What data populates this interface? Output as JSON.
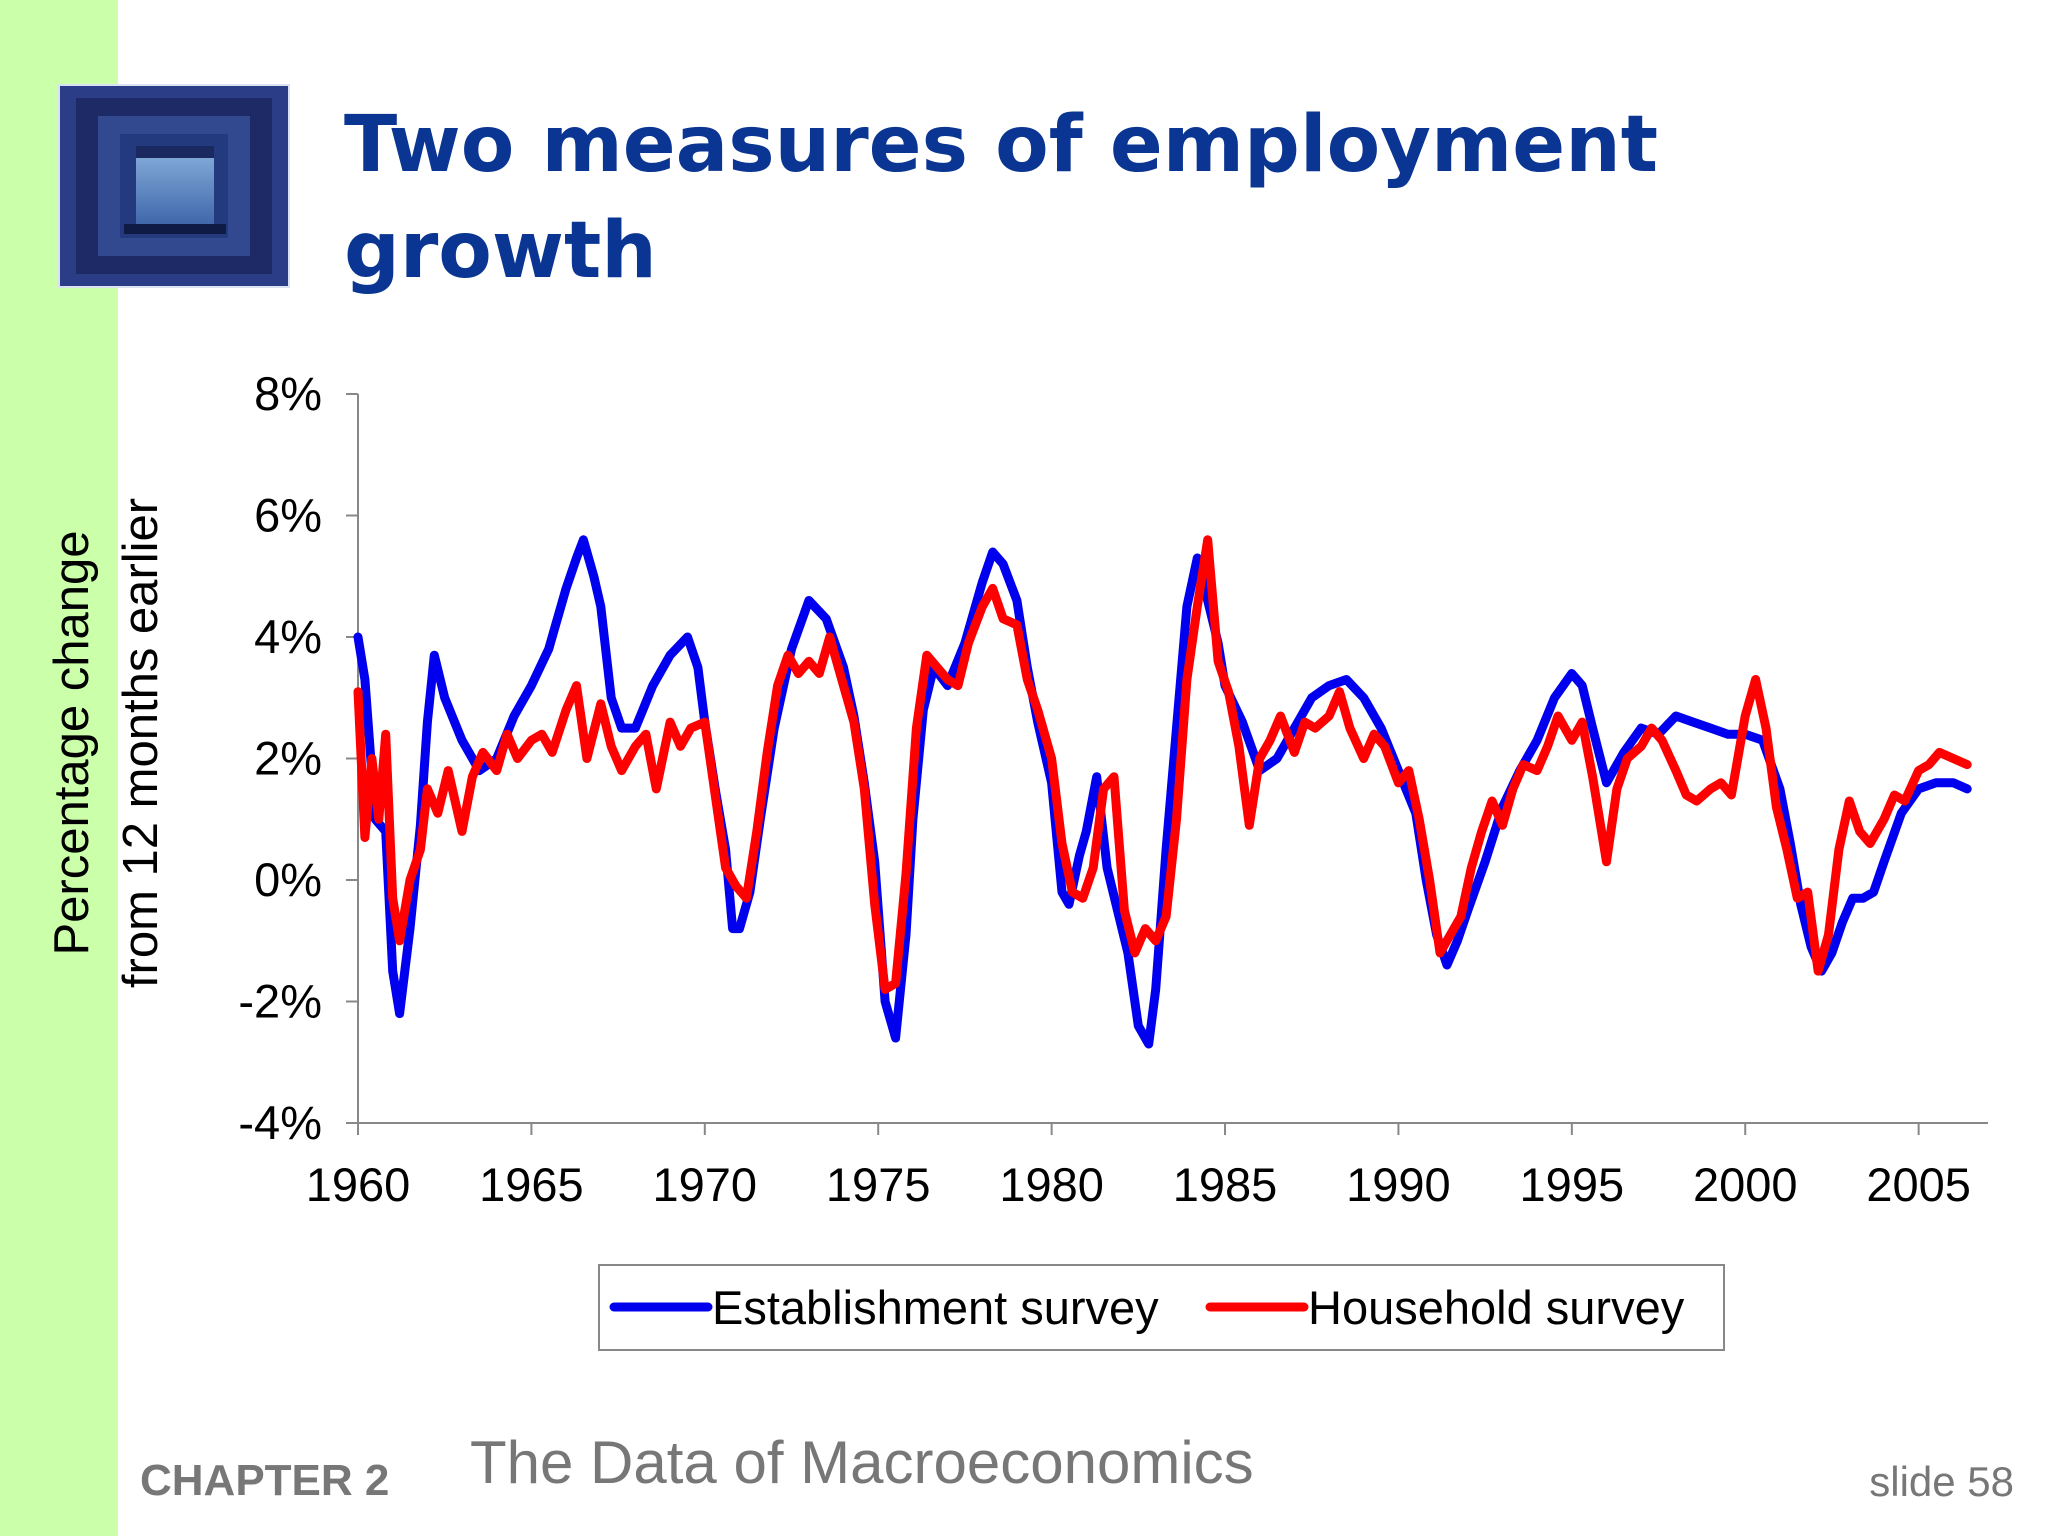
{
  "slide": {
    "title": "Two measures of employment growth",
    "chapter_label": "CHAPTER 2",
    "chapter_topic": "The Data of Macroeconomics",
    "slide_number": "slide 58",
    "thumbnail_icon": "stairwell-icon"
  },
  "colors": {
    "left_bar": "#ccffaa",
    "title": "#0a3592",
    "establishment": "#0000ee",
    "household": "#ff0000",
    "footer_text": "#777777"
  },
  "chart_data": {
    "type": "line",
    "title": "",
    "xlabel": "",
    "ylabel": "Percentage change from 12 months earlier",
    "ylabel_lines": [
      "Percentage change",
      "from 12 months earlier"
    ],
    "xlim": [
      1960,
      2007
    ],
    "ylim": [
      -4,
      8
    ],
    "x_ticks": [
      1960,
      1965,
      1970,
      1975,
      1980,
      1985,
      1990,
      1995,
      2000,
      2005
    ],
    "x_tick_labels": [
      "1960",
      "1965",
      "1970",
      "1975",
      "1980",
      "1985",
      "1990",
      "1995",
      "2000",
      "2005"
    ],
    "y_ticks": [
      -4,
      -2,
      0,
      2,
      4,
      6,
      8
    ],
    "y_tick_labels": [
      "-4%",
      "-2%",
      "0%",
      "2%",
      "4%",
      "6%",
      "8%"
    ],
    "grid": false,
    "legend": "bottom-center",
    "series": [
      {
        "name": "Establishment survey",
        "color": "#0000ee",
        "x": [
          1960.0,
          1960.2,
          1960.5,
          1960.8,
          1961.0,
          1961.2,
          1961.5,
          1961.8,
          1962.0,
          1962.2,
          1962.5,
          1963.0,
          1963.5,
          1964.0,
          1964.5,
          1965.0,
          1965.5,
          1966.0,
          1966.3,
          1966.5,
          1966.8,
          1967.0,
          1967.3,
          1967.6,
          1968.0,
          1968.5,
          1969.0,
          1969.5,
          1969.8,
          1970.0,
          1970.3,
          1970.6,
          1970.8,
          1971.0,
          1971.3,
          1971.6,
          1972.0,
          1972.5,
          1973.0,
          1973.5,
          1974.0,
          1974.3,
          1974.6,
          1974.9,
          1975.2,
          1975.5,
          1975.8,
          1976.0,
          1976.3,
          1976.6,
          1977.0,
          1977.5,
          1978.0,
          1978.3,
          1978.6,
          1979.0,
          1979.3,
          1979.6,
          1980.0,
          1980.3,
          1980.5,
          1980.8,
          1981.0,
          1981.3,
          1981.6,
          1981.9,
          1982.2,
          1982.5,
          1982.8,
          1983.0,
          1983.3,
          1983.6,
          1983.9,
          1984.2,
          1984.5,
          1984.8,
          1985.0,
          1985.5,
          1986.0,
          1986.5,
          1987.0,
          1987.5,
          1988.0,
          1988.5,
          1989.0,
          1989.5,
          1990.0,
          1990.5,
          1990.8,
          1991.1,
          1991.4,
          1991.7,
          1992.0,
          1992.5,
          1993.0,
          1993.5,
          1994.0,
          1994.5,
          1995.0,
          1995.3,
          1995.6,
          1996.0,
          1996.5,
          1997.0,
          1997.5,
          1998.0,
          1998.5,
          1999.0,
          1999.5,
          2000.0,
          2000.5,
          2001.0,
          2001.3,
          2001.6,
          2001.9,
          2002.2,
          2002.5,
          2002.8,
          2003.1,
          2003.4,
          2003.7,
          2004.0,
          2004.5,
          2005.0,
          2005.5,
          2006.0,
          2006.4
        ],
        "y": [
          4.0,
          3.3,
          1.0,
          0.8,
          -1.5,
          -2.2,
          -0.8,
          0.9,
          2.6,
          3.7,
          3.0,
          2.3,
          1.8,
          2.0,
          2.7,
          3.2,
          3.8,
          4.8,
          5.3,
          5.6,
          5.0,
          4.5,
          3.0,
          2.5,
          2.5,
          3.2,
          3.7,
          4.0,
          3.5,
          2.6,
          1.5,
          0.5,
          -0.8,
          -0.8,
          -0.2,
          1.0,
          2.5,
          3.8,
          4.6,
          4.3,
          3.5,
          2.7,
          1.6,
          0.3,
          -2.0,
          -2.6,
          -0.9,
          1.0,
          2.8,
          3.5,
          3.2,
          3.9,
          4.9,
          5.4,
          5.2,
          4.6,
          3.5,
          2.6,
          1.6,
          -0.2,
          -0.4,
          0.4,
          0.8,
          1.7,
          0.2,
          -0.5,
          -1.2,
          -2.4,
          -2.7,
          -1.8,
          0.5,
          2.5,
          4.5,
          5.3,
          4.6,
          3.9,
          3.2,
          2.6,
          1.8,
          2.0,
          2.5,
          3.0,
          3.2,
          3.3,
          3.0,
          2.5,
          1.8,
          1.1,
          0.0,
          -0.9,
          -1.4,
          -1.0,
          -0.5,
          0.3,
          1.2,
          1.8,
          2.3,
          3.0,
          3.4,
          3.2,
          2.5,
          1.6,
          2.1,
          2.5,
          2.4,
          2.7,
          2.6,
          2.5,
          2.4,
          2.4,
          2.3,
          1.5,
          0.6,
          -0.4,
          -1.1,
          -1.5,
          -1.2,
          -0.7,
          -0.3,
          -0.3,
          -0.2,
          0.3,
          1.1,
          1.5,
          1.6,
          1.6,
          1.5
        ]
      },
      {
        "name": "Household survey",
        "color": "#ff0000",
        "x": [
          1960.0,
          1960.2,
          1960.4,
          1960.6,
          1960.8,
          1961.0,
          1961.2,
          1961.5,
          1961.8,
          1962.0,
          1962.3,
          1962.6,
          1963.0,
          1963.3,
          1963.6,
          1964.0,
          1964.3,
          1964.6,
          1965.0,
          1965.3,
          1965.6,
          1966.0,
          1966.3,
          1966.6,
          1967.0,
          1967.3,
          1967.6,
          1968.0,
          1968.3,
          1968.6,
          1969.0,
          1969.3,
          1969.6,
          1970.0,
          1970.3,
          1970.6,
          1970.9,
          1971.2,
          1971.5,
          1971.8,
          1972.1,
          1972.4,
          1972.7,
          1973.0,
          1973.3,
          1973.6,
          1974.0,
          1974.3,
          1974.6,
          1974.9,
          1975.2,
          1975.5,
          1975.8,
          1976.1,
          1976.4,
          1976.7,
          1977.0,
          1977.3,
          1977.6,
          1978.0,
          1978.3,
          1978.6,
          1979.0,
          1979.3,
          1979.6,
          1980.0,
          1980.3,
          1980.6,
          1980.9,
          1981.2,
          1981.5,
          1981.8,
          1982.1,
          1982.4,
          1982.7,
          1983.0,
          1983.3,
          1983.6,
          1983.9,
          1984.2,
          1984.5,
          1984.8,
          1985.1,
          1985.4,
          1985.7,
          1986.0,
          1986.3,
          1986.6,
          1987.0,
          1987.3,
          1987.6,
          1988.0,
          1988.3,
          1988.6,
          1989.0,
          1989.3,
          1989.6,
          1990.0,
          1990.3,
          1990.6,
          1990.9,
          1991.2,
          1991.5,
          1991.8,
          1992.1,
          1992.4,
          1992.7,
          1993.0,
          1993.3,
          1993.6,
          1994.0,
          1994.3,
          1994.6,
          1995.0,
          1995.3,
          1995.6,
          1996.0,
          1996.3,
          1996.6,
          1997.0,
          1997.3,
          1997.6,
          1998.0,
          1998.3,
          1998.6,
          1999.0,
          1999.3,
          1999.6,
          2000.0,
          2000.3,
          2000.6,
          2000.9,
          2001.2,
          2001.5,
          2001.8,
          2002.1,
          2002.4,
          2002.7,
          2003.0,
          2003.3,
          2003.6,
          2004.0,
          2004.3,
          2004.6,
          2005.0,
          2005.3,
          2005.6,
          2006.0,
          2006.4
        ],
        "y": [
          3.1,
          0.7,
          2.0,
          1.0,
          2.4,
          -0.3,
          -1.0,
          0.0,
          0.5,
          1.5,
          1.1,
          1.8,
          0.8,
          1.7,
          2.1,
          1.8,
          2.4,
          2.0,
          2.3,
          2.4,
          2.1,
          2.8,
          3.2,
          2.0,
          2.9,
          2.2,
          1.8,
          2.2,
          2.4,
          1.5,
          2.6,
          2.2,
          2.5,
          2.6,
          1.4,
          0.2,
          -0.1,
          -0.3,
          0.8,
          2.1,
          3.2,
          3.7,
          3.4,
          3.6,
          3.4,
          4.0,
          3.2,
          2.6,
          1.5,
          -0.4,
          -1.8,
          -1.7,
          0.1,
          2.5,
          3.7,
          3.5,
          3.3,
          3.2,
          3.9,
          4.5,
          4.8,
          4.3,
          4.2,
          3.3,
          2.8,
          2.0,
          0.6,
          -0.2,
          -0.3,
          0.2,
          1.5,
          1.7,
          -0.5,
          -1.2,
          -0.8,
          -1.0,
          -0.6,
          1.0,
          3.3,
          4.5,
          5.6,
          3.6,
          3.1,
          2.2,
          0.9,
          2.0,
          2.3,
          2.7,
          2.1,
          2.6,
          2.5,
          2.7,
          3.1,
          2.5,
          2.0,
          2.4,
          2.2,
          1.6,
          1.8,
          1.0,
          0.0,
          -1.2,
          -0.9,
          -0.6,
          0.2,
          0.8,
          1.3,
          0.9,
          1.5,
          1.9,
          1.8,
          2.2,
          2.7,
          2.3,
          2.6,
          1.7,
          0.3,
          1.5,
          2.0,
          2.2,
          2.5,
          2.3,
          1.8,
          1.4,
          1.3,
          1.5,
          1.6,
          1.4,
          2.7,
          3.3,
          2.5,
          1.2,
          0.5,
          -0.3,
          -0.2,
          -1.5,
          -0.9,
          0.5,
          1.3,
          0.8,
          0.6,
          1.0,
          1.4,
          1.3,
          1.8,
          1.9,
          2.1,
          2.0,
          1.9
        ]
      }
    ]
  }
}
